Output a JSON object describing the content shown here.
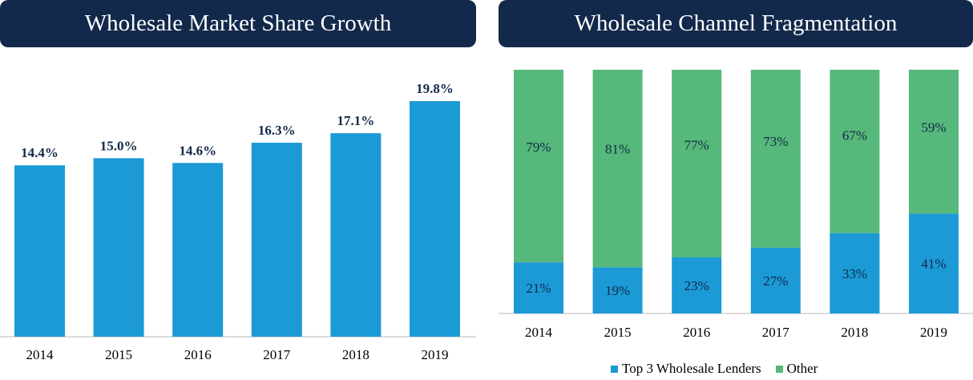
{
  "left": {
    "title": "Wholesale Market Share Growth"
  },
  "right": {
    "title": "Wholesale Channel Fragmentation",
    "legend": [
      {
        "label": "Top 3 Wholesale Lenders",
        "color": "#1b9ad6"
      },
      {
        "label": "Other",
        "color": "#56b87a"
      }
    ]
  },
  "chart_data": [
    {
      "type": "bar",
      "title": "Wholesale Market Share Growth",
      "categories": [
        "2014",
        "2015",
        "2016",
        "2017",
        "2018",
        "2019"
      ],
      "values": [
        14.4,
        15.0,
        14.6,
        16.3,
        17.1,
        19.8
      ],
      "value_labels": [
        "14.4%",
        "15.0%",
        "14.6%",
        "16.3%",
        "17.1%",
        "19.8%"
      ],
      "bar_color": "#1b9ad6",
      "ylim": [
        0,
        22.5
      ],
      "xlabel": "",
      "ylabel": ""
    },
    {
      "type": "bar",
      "stacked": true,
      "title": "Wholesale Channel Fragmentation",
      "categories": [
        "2014",
        "2015",
        "2016",
        "2017",
        "2018",
        "2019"
      ],
      "series": [
        {
          "name": "Top 3 Wholesale Lenders",
          "values": [
            21,
            19,
            23,
            27,
            33,
            41
          ],
          "labels": [
            "21%",
            "19%",
            "23%",
            "27%",
            "33%",
            "41%"
          ],
          "color": "#1b9ad6"
        },
        {
          "name": "Other",
          "values": [
            79,
            81,
            77,
            73,
            67,
            59
          ],
          "labels": [
            "79%",
            "81%",
            "77%",
            "73%",
            "67%",
            "59%"
          ],
          "color": "#56b87a"
        }
      ],
      "ylim": [
        0,
        100
      ],
      "legend_position": "bottom"
    }
  ]
}
